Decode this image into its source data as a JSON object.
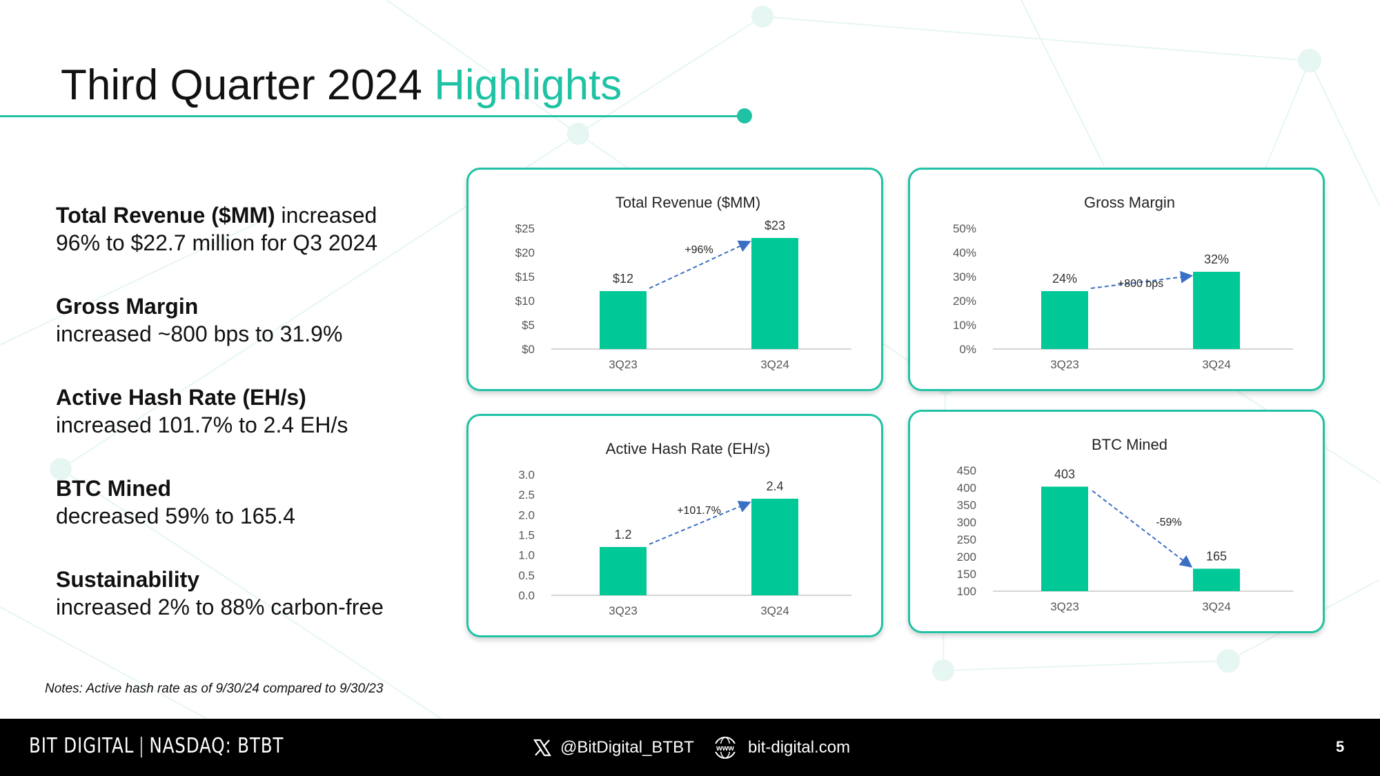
{
  "slide": {
    "title_main": "Third Quarter 2024",
    "title_accent": "Highlights",
    "accent_color": "#1fc2a4",
    "bar_color": "#00c896",
    "arrow_color": "#3a6fc4"
  },
  "highlights": [
    {
      "heading": "Total Revenue ($MM)",
      "inline_text": " increased",
      "body": "96% to $22.7 million for Q3 2024"
    },
    {
      "heading": "Gross Margin",
      "body": "increased ~800 bps to 31.9%"
    },
    {
      "heading": "Active Hash Rate (EH/s)",
      "body": "increased 101.7% to 2.4 EH/s"
    },
    {
      "heading": "BTC Mined",
      "body": "decreased 59% to 165.4"
    },
    {
      "heading": "Sustainability",
      "body": "increased 2% to 88% carbon-free"
    }
  ],
  "notes": "Notes: Active hash rate as of 9/30/24 compared to 9/30/23",
  "footer": {
    "brand": "BIT DIGITAL",
    "separator": "|",
    "ticker": "NASDAQ: BTBT",
    "twitter": "@BitDigital_BTBT",
    "website_icon_text": "www",
    "website": "bit-digital.com",
    "page_number": "5"
  },
  "chart_data": [
    {
      "type": "bar",
      "title": "Total Revenue ($MM)",
      "categories": [
        "3Q23",
        "3Q24"
      ],
      "values": [
        12,
        23
      ],
      "data_labels": [
        "$12",
        "$23"
      ],
      "yticks": [
        0,
        5,
        10,
        15,
        20,
        25
      ],
      "ytick_labels": [
        "$0",
        "$5",
        "$10",
        "$15",
        "$20",
        "$25"
      ],
      "ylim": [
        0,
        25
      ],
      "change_label": "+96%",
      "grid": false
    },
    {
      "type": "bar",
      "title": "Gross Margin",
      "categories": [
        "3Q23",
        "3Q24"
      ],
      "values": [
        24,
        32
      ],
      "data_labels": [
        "24%",
        "32%"
      ],
      "yticks": [
        0,
        10,
        20,
        30,
        40,
        50
      ],
      "ytick_labels": [
        "0%",
        "10%",
        "20%",
        "30%",
        "40%",
        "50%"
      ],
      "ylim": [
        0,
        50
      ],
      "change_label": "+800 bps",
      "grid": false
    },
    {
      "type": "bar",
      "title": "Active Hash Rate (EH/s)",
      "categories": [
        "3Q23",
        "3Q24"
      ],
      "values": [
        1.2,
        2.4
      ],
      "data_labels": [
        "1.2",
        "2.4"
      ],
      "yticks": [
        0,
        0.5,
        1,
        1.5,
        2,
        2.5,
        3
      ],
      "ytick_labels": [
        "0.0",
        "0.5",
        "1.0",
        "1.5",
        "2.0",
        "2.5",
        "3.0"
      ],
      "ylim": [
        0,
        3
      ],
      "change_label": "+101.7%",
      "grid": false
    },
    {
      "type": "bar",
      "title": "BTC Mined",
      "categories": [
        "3Q23",
        "3Q24"
      ],
      "values": [
        403,
        165
      ],
      "data_labels": [
        "403",
        "165"
      ],
      "yticks": [
        100,
        150,
        200,
        250,
        300,
        350,
        400,
        450
      ],
      "ytick_labels": [
        "100",
        "150",
        "200",
        "250",
        "300",
        "350",
        "400",
        "450"
      ],
      "ylim": [
        100,
        450
      ],
      "change_label": "-59%",
      "grid": false
    }
  ]
}
